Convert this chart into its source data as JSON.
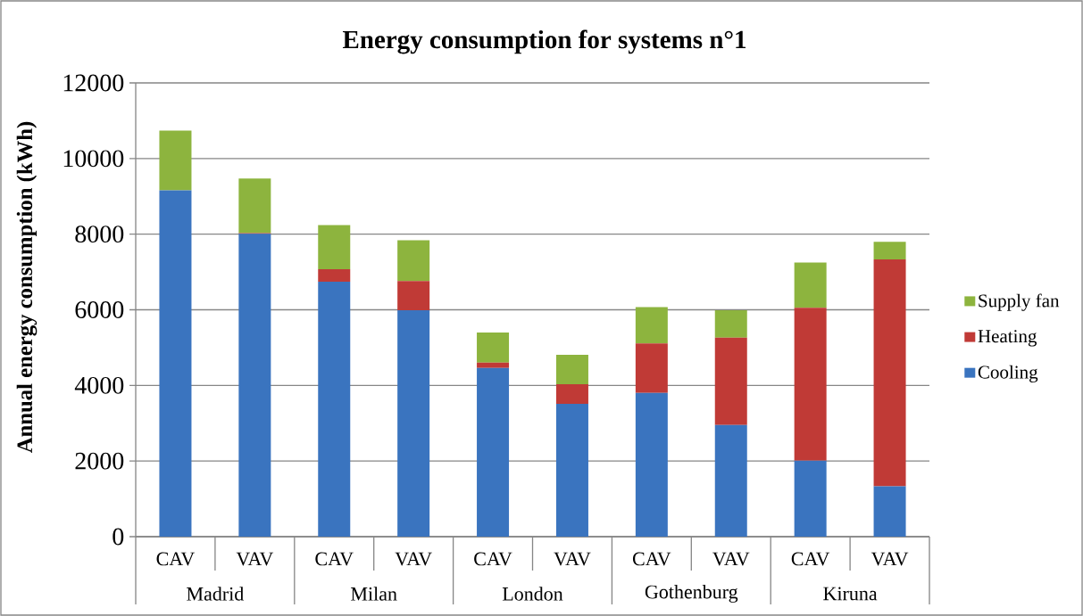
{
  "chart_data": {
    "type": "bar",
    "title": "Energy consumption for systems n°1",
    "ylabel": "Annual energy consumption (kWh)",
    "categories": [
      "CAV",
      "VAV",
      "CAV",
      "VAV",
      "CAV",
      "VAV",
      "CAV",
      "VAV",
      "CAV",
      "VAV"
    ],
    "annotations": [
      "Madrid",
      "Milan",
      "London",
      "Gothenburg",
      "Kiruna"
    ],
    "series": [
      {
        "name": "Cooling",
        "color": "#3a74bf",
        "values": [
          9160,
          8010,
          6740,
          5990,
          4460,
          3510,
          3800,
          2950,
          2010,
          1330
        ]
      },
      {
        "name": "Heating",
        "color": "#c03a36",
        "values": [
          0,
          20,
          330,
          770,
          140,
          520,
          1310,
          2310,
          4040,
          6000
        ]
      },
      {
        "name": "Supply fan",
        "color": "#8db43e",
        "values": [
          1580,
          1440,
          1170,
          1080,
          800,
          780,
          960,
          730,
          1200,
          470
        ]
      }
    ],
    "stacked": true,
    "ylim": [
      0,
      12000
    ],
    "yticks": [
      0,
      2000,
      4000,
      6000,
      8000,
      10000,
      12000
    ],
    "grid": "y",
    "legend": "right"
  }
}
